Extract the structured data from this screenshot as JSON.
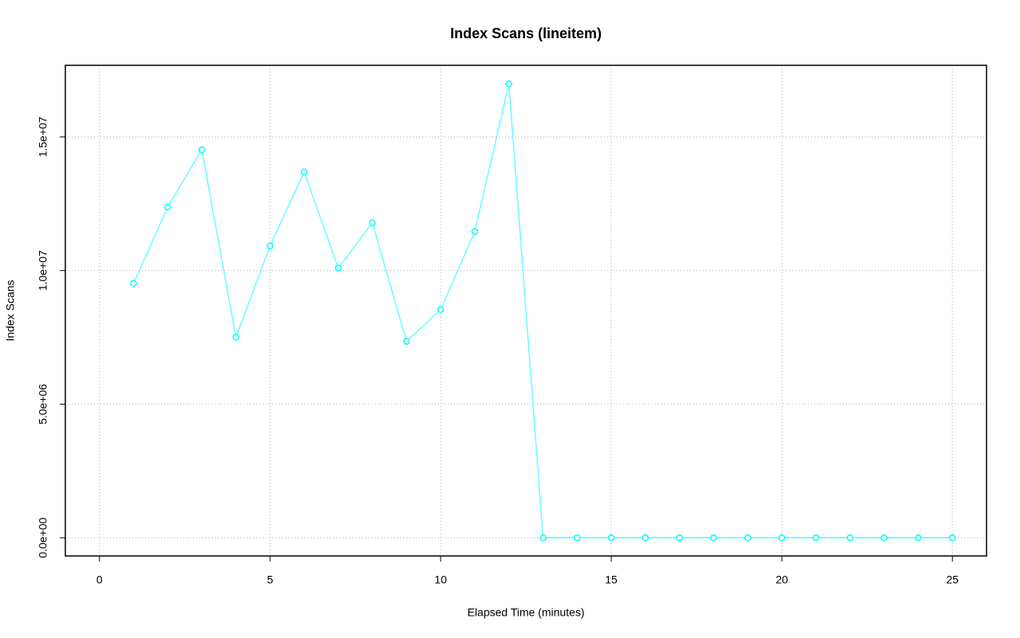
{
  "chart_data": {
    "type": "line",
    "title": "Index Scans (lineitem)",
    "x_label": "Elapsed Time (minutes)",
    "y_label": "Index Scans",
    "x": [
      1,
      2,
      3,
      4,
      5,
      6,
      7,
      8,
      9,
      10,
      11,
      12,
      13,
      14,
      15,
      16,
      17,
      18,
      19,
      20,
      21,
      22,
      23,
      24,
      25
    ],
    "series": [
      {
        "name": "Index Scans",
        "color": "#00ffff",
        "values": [
          9520000,
          12380000,
          14520000,
          7500000,
          10920000,
          13690000,
          10090000,
          11790000,
          7350000,
          8540000,
          11460000,
          16990000,
          0,
          0,
          0,
          0,
          0,
          0,
          0,
          0,
          0,
          0,
          0,
          0,
          0
        ]
      }
    ],
    "xlim": [
      -1,
      26
    ],
    "ylim": [
      -680000,
      17680000
    ],
    "xticks": [
      0,
      5,
      10,
      15,
      20,
      25
    ],
    "yticks": [
      {
        "value": 0,
        "label": "0.0e+00"
      },
      {
        "value": 5000000,
        "label": "5.0e+06"
      },
      {
        "value": 10000000,
        "label": "1.0e+07"
      },
      {
        "value": 15000000,
        "label": "1.5e+07"
      }
    ],
    "grid": true
  }
}
